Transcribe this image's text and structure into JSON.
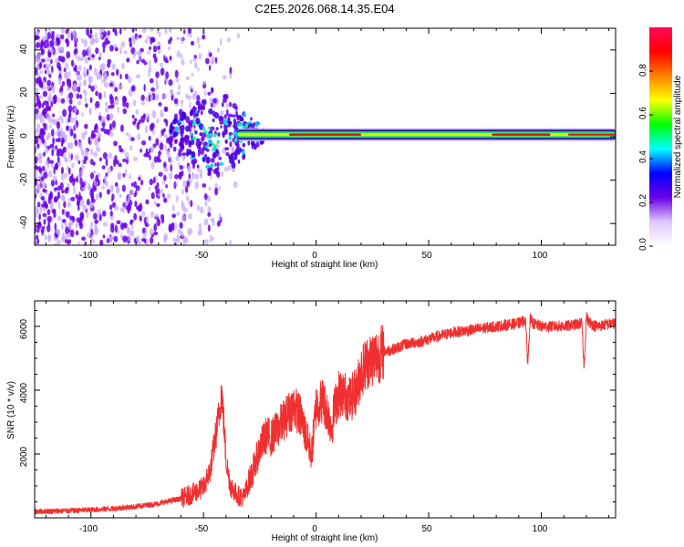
{
  "figure": {
    "title": "C2E5.2026.068.14.35.E04"
  },
  "colors": {
    "snr_line": "#f03030",
    "band_core": "#e60a00",
    "scatter": "#6a00e8",
    "scatter_light": "#c8a8f8"
  },
  "chart_data": [
    {
      "type": "heatmap",
      "name": "spectrogram",
      "title": "C2E5.2026.068.14.35.E04",
      "xlabel": "Height of straight line (km)",
      "ylabel": "Frequency (Hz)",
      "xlim": [
        -125,
        133
      ],
      "ylim": [
        -50,
        50
      ],
      "x_ticks": [
        -100,
        -50,
        0,
        50,
        100
      ],
      "x_tick_labels": [
        "-100",
        "-50",
        "0",
        "50",
        "100"
      ],
      "y_ticks": [
        -40,
        -20,
        0,
        20,
        40
      ],
      "y_tick_labels": [
        "-40",
        "-20",
        "0",
        "20",
        "40"
      ],
      "colorbar": {
        "label": "Normalized spectral amplitude",
        "range": [
          0,
          1
        ],
        "ticks": [
          0.0,
          0.2,
          0.4,
          0.6,
          0.8
        ],
        "tick_labels": [
          "0.0",
          "0.2",
          "0.4",
          "0.6",
          "0.8"
        ],
        "colormap": [
          "#ffffff",
          "#e0c8ff",
          "#6a00e8",
          "#0000ff",
          "#00ffff",
          "#00ff00",
          "#ffff00",
          "#ff8000",
          "#ff0000",
          "#ff0a5a"
        ]
      },
      "features": {
        "band_center_hz": 1,
        "band_start_km": -35,
        "noise_end_km": -30
      }
    },
    {
      "type": "line",
      "name": "snr",
      "xlabel": "Height of straight line (km)",
      "ylabel": "SNR (10 * v/v)",
      "xlim": [
        -125,
        133
      ],
      "ylim": [
        0,
        6800
      ],
      "x_ticks": [
        -100,
        -50,
        0,
        50,
        100
      ],
      "x_tick_labels": [
        "-100",
        "-50",
        "0",
        "50",
        "100"
      ],
      "y_ticks": [
        2000,
        4000,
        6000
      ],
      "y_tick_labels": [
        "2000",
        "4000",
        "6000"
      ],
      "series": [
        {
          "name": "SNR",
          "x": [
            -125,
            -110,
            -100,
            -90,
            -80,
            -70,
            -60,
            -55,
            -50,
            -47,
            -45,
            -43,
            -42,
            -41,
            -40,
            -38,
            -35,
            -32,
            -30,
            -27,
            -25,
            -22,
            -20,
            -17,
            -15,
            -12,
            -10,
            -7,
            -5,
            -2,
            0,
            3,
            5,
            7,
            8,
            10,
            12,
            15,
            18,
            20,
            23,
            25,
            30,
            35,
            40,
            45,
            50,
            55,
            60,
            65,
            70,
            75,
            80,
            85,
            90,
            93,
            94,
            95,
            96,
            98,
            100,
            105,
            110,
            115,
            118,
            119,
            120,
            121,
            123,
            125,
            128,
            133
          ],
          "values": [
            200,
            220,
            250,
            290,
            350,
            450,
            600,
            750,
            950,
            1500,
            2400,
            3300,
            4000,
            3000,
            1800,
            1000,
            700,
            650,
            1100,
            1700,
            2200,
            2600,
            2500,
            2800,
            3000,
            3300,
            3500,
            3200,
            2700,
            2000,
            3500,
            3700,
            3300,
            2800,
            3400,
            3900,
            3900,
            3700,
            4000,
            4600,
            4900,
            5000,
            5200,
            5300,
            5450,
            5500,
            5600,
            5700,
            5800,
            5850,
            5900,
            5950,
            6000,
            6050,
            6100,
            6200,
            4800,
            6250,
            6100,
            6050,
            6000,
            6000,
            6000,
            6050,
            6100,
            4700,
            6300,
            6150,
            6050,
            6000,
            6050,
            6100
          ],
          "color": "#f03030"
        }
      ]
    }
  ]
}
